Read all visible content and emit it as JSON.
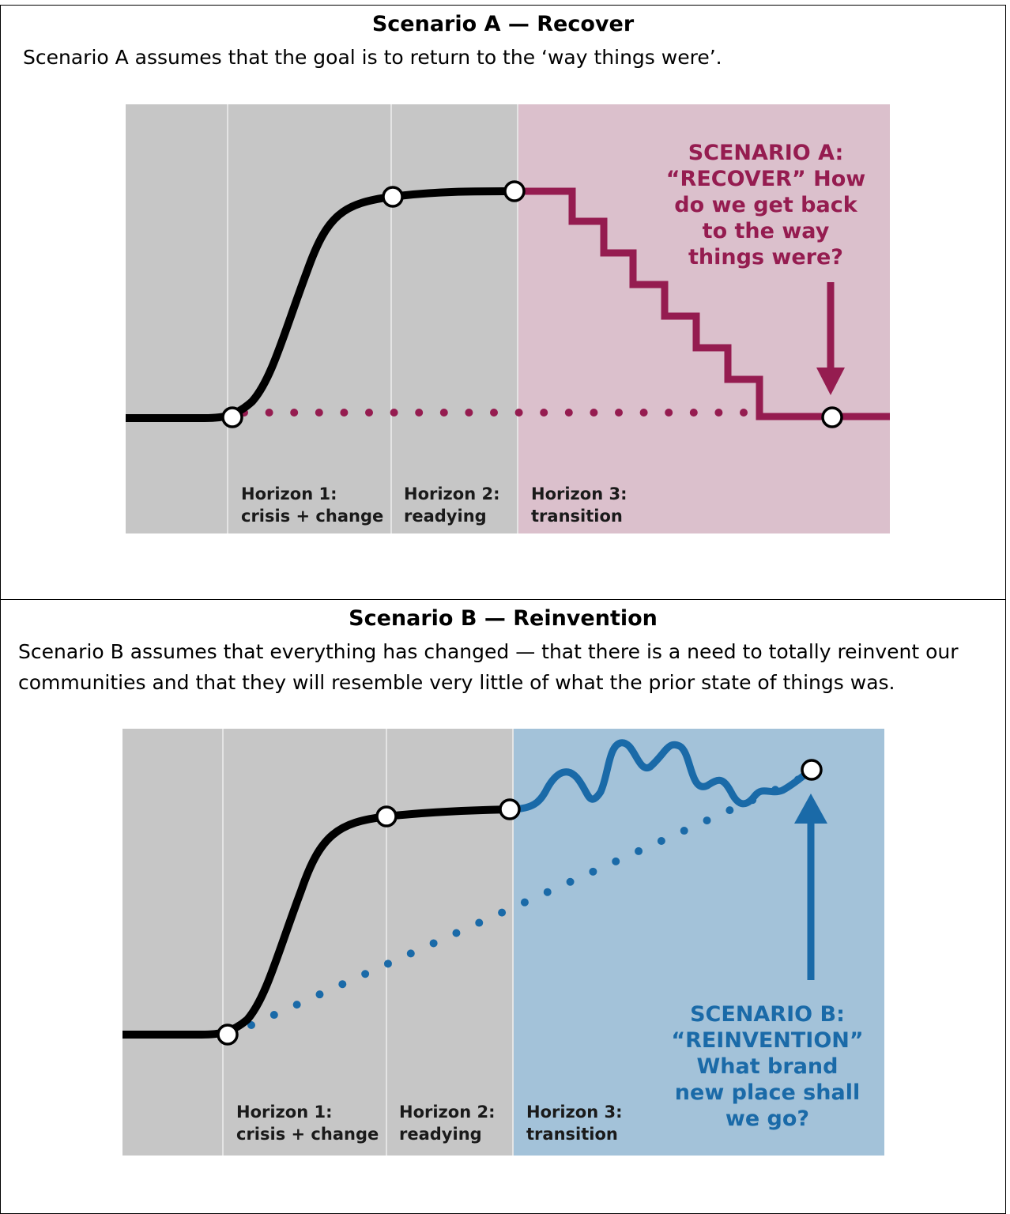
{
  "scenario_a": {
    "title": "Scenario A — Recover",
    "description": "Scenario A assumes that the goal is to return to the ‘way things were’.",
    "figure": {
      "callout": [
        "SCENARIO A:",
        "“RECOVER” How",
        "do we get back",
        "to the way",
        "things were?"
      ],
      "horizon1": [
        "Horizon 1:",
        "crisis + change"
      ],
      "horizon2": [
        "Horizon 2:",
        "readying"
      ],
      "horizon3": [
        "Horizon 3:",
        "transition"
      ],
      "accent_color": "#951c50",
      "zone_color": "#dbc0cc"
    }
  },
  "scenario_b": {
    "title": "Scenario B — Reinvention",
    "description": "Scenario B assumes that everything has changed — that there is a need to totally reinvent our communities and that they will resemble very little of what the prior state of things was.",
    "figure": {
      "callout": [
        "SCENARIO B:",
        "“REINVENTION”",
        "What brand",
        "new place shall",
        "we go?"
      ],
      "horizon1": [
        "Horizon 1:",
        "crisis + change"
      ],
      "horizon2": [
        "Horizon 2:",
        "readying"
      ],
      "horizon3": [
        "Horizon 3:",
        "transition"
      ],
      "accent_color": "#1a6aa8",
      "zone_color": "#a3c2d9"
    }
  }
}
